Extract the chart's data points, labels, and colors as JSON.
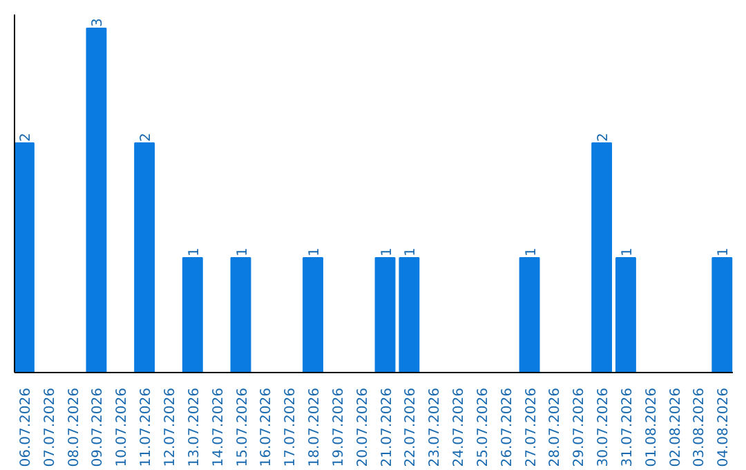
{
  "chart_data": {
    "type": "bar",
    "categories": [
      "06.07.2026",
      "07.07.2026",
      "08.07.2026",
      "09.07.2026",
      "10.07.2026",
      "11.07.2026",
      "12.07.2026",
      "13.07.2026",
      "14.07.2026",
      "15.07.2026",
      "16.07.2026",
      "17.07.2026",
      "18.07.2026",
      "19.07.2026",
      "20.07.2026",
      "21.07.2026",
      "22.07.2026",
      "23.07.2026",
      "24.07.2026",
      "25.07.2026",
      "26.07.2026",
      "27.07.2026",
      "28.07.2026",
      "29.07.2026",
      "30.07.2026",
      "31.07.2026",
      "01.08.2026",
      "02.08.2026",
      "03.08.2026",
      "04.08.2026"
    ],
    "values": [
      2,
      0,
      0,
      3,
      0,
      2,
      0,
      1,
      0,
      1,
      0,
      0,
      1,
      0,
      0,
      1,
      1,
      0,
      0,
      0,
      0,
      1,
      0,
      0,
      2,
      1,
      0,
      0,
      0,
      1
    ],
    "value_labels": [
      "2",
      null,
      null,
      "3",
      null,
      "2",
      null,
      "1",
      null,
      "1",
      null,
      null,
      "1",
      null,
      null,
      "1",
      "1",
      null,
      null,
      null,
      null,
      "1",
      null,
      null,
      "2",
      "1",
      null,
      null,
      null,
      "1"
    ],
    "color": "#0a7be0",
    "ylim": [
      0,
      3.12
    ],
    "tick_labels": "x"
  }
}
